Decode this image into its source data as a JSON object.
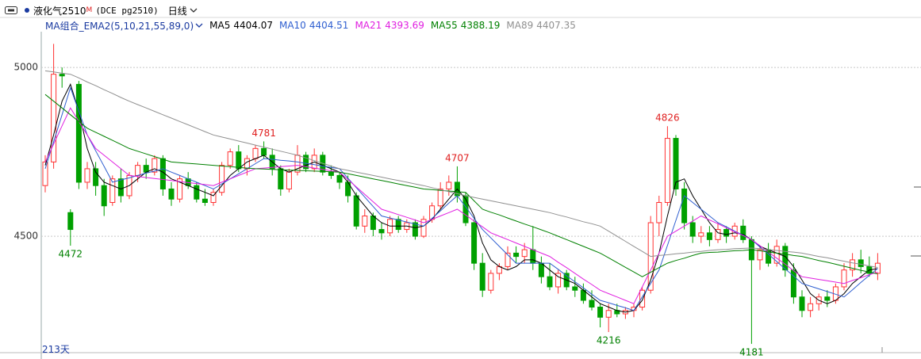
{
  "header": {
    "symbol": "液化气2510",
    "flag": "M",
    "code": "(DCE pg2510)",
    "period": "日线"
  },
  "indicator": "MA组合_EMA2(5,10,21,55,89,0)",
  "footer": "213天",
  "chart_data": {
    "type": "candlestick",
    "up_color": "#ff3232",
    "down_color": "#00a000",
    "ylim": [
      4155,
      5106
    ],
    "yticks": [
      4500,
      5000
    ],
    "grid": true,
    "open": [
      4650,
      4720,
      4980,
      4570,
      4950,
      4660,
      4700,
      4650,
      4600,
      4670,
      4620,
      4680,
      4710,
      4690,
      4730,
      4640,
      4610,
      4670,
      4650,
      4610,
      4600,
      4630,
      4710,
      4750,
      4700,
      4730,
      4760,
      4740,
      4700,
      4640,
      4690,
      4740,
      4700,
      4740,
      4690,
      4680,
      4660,
      4620,
      4530,
      4560,
      4520,
      4510,
      4550,
      4520,
      4540,
      4500,
      4550,
      4590,
      4640,
      4660,
      4620,
      4540,
      4420,
      4340,
      4390,
      4410,
      4450,
      4440,
      4460,
      4420,
      4380,
      4350,
      4390,
      4350,
      4340,
      4310,
      4290,
      4260,
      4280,
      4270,
      4280,
      4290,
      4340,
      4540,
      4600,
      4790,
      4640,
      4540,
      4500,
      4510,
      4490,
      4520,
      4500,
      4530,
      4490,
      4430,
      4460,
      4420,
      4470,
      4400,
      4320,
      4280,
      4300,
      4320,
      4310,
      4350,
      4400,
      4430,
      4410,
      4390
    ],
    "high": [
      4740,
      5070,
      5000,
      4580,
      4960,
      4720,
      4720,
      4670,
      4680,
      4700,
      4690,
      4720,
      4730,
      4740,
      4740,
      4660,
      4680,
      4690,
      4660,
      4640,
      4640,
      4720,
      4760,
      4770,
      4740,
      4770,
      4781,
      4760,
      4710,
      4700,
      4770,
      4750,
      4760,
      4750,
      4710,
      4690,
      4680,
      4630,
      4580,
      4570,
      4540,
      4560,
      4560,
      4550,
      4550,
      4560,
      4600,
      4660,
      4680,
      4707,
      4630,
      4550,
      4450,
      4400,
      4420,
      4470,
      4470,
      4480,
      4530,
      4440,
      4420,
      4400,
      4400,
      4380,
      4360,
      4340,
      4300,
      4300,
      4300,
      4290,
      4300,
      4350,
      4560,
      4620,
      4826,
      4800,
      4660,
      4560,
      4530,
      4530,
      4540,
      4530,
      4540,
      4550,
      4500,
      4470,
      4480,
      4490,
      4480,
      4420,
      4340,
      4320,
      4330,
      4340,
      4360,
      4420,
      4450,
      4460,
      4440,
      4450
    ],
    "low": [
      4630,
      4700,
      4940,
      4472,
      4640,
      4640,
      4620,
      4560,
      4590,
      4600,
      4610,
      4660,
      4670,
      4680,
      4620,
      4590,
      4600,
      4640,
      4600,
      4590,
      4590,
      4620,
      4700,
      4690,
      4680,
      4720,
      4730,
      4680,
      4620,
      4630,
      4680,
      4690,
      4690,
      4680,
      4670,
      4640,
      4600,
      4520,
      4510,
      4500,
      4490,
      4500,
      4510,
      4510,
      4490,
      4495,
      4540,
      4580,
      4620,
      4600,
      4530,
      4400,
      4320,
      4330,
      4370,
      4400,
      4420,
      4420,
      4400,
      4360,
      4340,
      4330,
      4340,
      4320,
      4300,
      4280,
      4230,
      4216,
      4260,
      4255,
      4260,
      4280,
      4330,
      4500,
      4590,
      4620,
      4520,
      4480,
      4480,
      4470,
      4480,
      4480,
      4490,
      4480,
      4181,
      4400,
      4410,
      4410,
      4380,
      4300,
      4260,
      4260,
      4280,
      4290,
      4300,
      4340,
      4380,
      4390,
      4380,
      4370
    ],
    "close": [
      4720,
      4980,
      4975,
      4520,
      4660,
      4700,
      4650,
      4590,
      4670,
      4620,
      4680,
      4710,
      4690,
      4730,
      4640,
      4610,
      4670,
      4650,
      4610,
      4600,
      4630,
      4710,
      4750,
      4700,
      4730,
      4760,
      4740,
      4700,
      4640,
      4690,
      4740,
      4700,
      4740,
      4690,
      4680,
      4660,
      4620,
      4530,
      4560,
      4520,
      4510,
      4550,
      4520,
      4540,
      4500,
      4550,
      4590,
      4640,
      4660,
      4620,
      4540,
      4420,
      4340,
      4390,
      4410,
      4450,
      4440,
      4460,
      4420,
      4380,
      4350,
      4390,
      4350,
      4340,
      4310,
      4290,
      4260,
      4280,
      4270,
      4280,
      4290,
      4340,
      4540,
      4600,
      4790,
      4640,
      4540,
      4500,
      4510,
      4490,
      4520,
      4500,
      4530,
      4490,
      4430,
      4460,
      4420,
      4470,
      4400,
      4320,
      4280,
      4300,
      4320,
      4310,
      4350,
      4400,
      4430,
      4410,
      4390,
      4420
    ],
    "extreme_labels": [
      4472,
      4781,
      4707,
      4826,
      4216,
      4181
    ],
    "series": [
      {
        "name": "MA5",
        "color": "#000000",
        "values": [
          4710,
          4800,
          4900,
          4950,
          4870,
          4760,
          4690,
          4660,
          4650,
          4640,
          4650,
          4670,
          4690,
          4700,
          4690,
          4670,
          4660,
          4650,
          4640,
          4630,
          4620,
          4650,
          4680,
          4700,
          4720,
          4730,
          4740,
          4720,
          4700,
          4690,
          4700,
          4710,
          4720,
          4710,
          4700,
          4690,
          4660,
          4620,
          4590,
          4560,
          4540,
          4530,
          4530,
          4530,
          4525,
          4530,
          4550,
          4580,
          4610,
          4640,
          4610,
          4560,
          4480,
          4430,
          4410,
          4400,
          4410,
          4430,
          4430,
          4420,
          4400,
          4380,
          4370,
          4360,
          4340,
          4320,
          4300,
          4290,
          4280,
          4275,
          4280,
          4310,
          4370,
          4450,
          4560,
          4660,
          4670,
          4620,
          4580,
          4540,
          4510,
          4505,
          4510,
          4505,
          4490,
          4470,
          4460,
          4450,
          4440,
          4410,
          4370,
          4330,
          4310,
          4300,
          4310,
          4330,
          4360,
          4380,
          4400,
          4404.07
        ]
      },
      {
        "name": "MA10",
        "color": "#2f5fd0",
        "values": [
          4700,
          4780,
          4860,
          4940,
          4870,
          4800,
          4753,
          4707,
          4660,
          4667,
          4673,
          4680,
          4687,
          4693,
          4700,
          4690,
          4680,
          4670,
          4660,
          4650,
          4640,
          4655,
          4670,
          4685,
          4700,
          4715,
          4730,
          4728,
          4725,
          4723,
          4720,
          4716,
          4712,
          4708,
          4704,
          4700,
          4672,
          4644,
          4616,
          4588,
          4560,
          4554,
          4548,
          4542,
          4536,
          4530,
          4553,
          4575,
          4598,
          4620,
          4587,
          4553,
          4520,
          4495,
          4470,
          4445,
          4420,
          4420,
          4420,
          4420,
          4420,
          4402,
          4383,
          4365,
          4347,
          4328,
          4310,
          4303,
          4295,
          4288,
          4280,
          4320,
          4360,
          4400,
          4473,
          4547,
          4620,
          4600,
          4580,
          4560,
          4540,
          4528,
          4515,
          4503,
          4490,
          4468,
          4447,
          4425,
          4403,
          4382,
          4360,
          4352,
          4344,
          4336,
          4328,
          4320,
          4341,
          4363,
          4384,
          4404.51
        ]
      },
      {
        "name": "MA21",
        "color": "#e020e0",
        "values": [
          4720,
          4773,
          4827,
          4880,
          4840,
          4800,
          4760,
          4740,
          4720,
          4700,
          4680,
          4677,
          4674,
          4671,
          4668,
          4665,
          4662,
          4659,
          4656,
          4653,
          4650,
          4660,
          4670,
          4680,
          4690,
          4700,
          4702,
          4704,
          4706,
          4708,
          4710,
          4706,
          4702,
          4698,
          4694,
          4690,
          4668,
          4646,
          4624,
          4602,
          4580,
          4572,
          4564,
          4556,
          4548,
          4540,
          4550,
          4560,
          4570,
          4580,
          4563,
          4545,
          4528,
          4510,
          4500,
          4490,
          4480,
          4470,
          4460,
          4450,
          4440,
          4423,
          4407,
          4390,
          4373,
          4357,
          4340,
          4330,
          4320,
          4310,
          4300,
          4350,
          4400,
          4450,
          4500,
          4515,
          4530,
          4545,
          4560,
          4548,
          4537,
          4525,
          4513,
          4502,
          4490,
          4472,
          4453,
          4435,
          4417,
          4398,
          4380,
          4376,
          4372,
          4368,
          4364,
          4360,
          4369,
          4377,
          4386,
          4393.69
        ]
      },
      {
        "name": "MA55",
        "color": "#008000",
        "values": [
          4920,
          4900,
          4880,
          4860,
          4840,
          4820,
          4808,
          4796,
          4784,
          4772,
          4760,
          4752,
          4744,
          4736,
          4728,
          4720,
          4718,
          4716,
          4714,
          4712,
          4710,
          4708,
          4706,
          4704,
          4702,
          4700,
          4699,
          4698,
          4697,
          4696,
          4695,
          4694,
          4693,
          4692,
          4691,
          4690,
          4685,
          4680,
          4675,
          4670,
          4665,
          4660,
          4655,
          4650,
          4645,
          4640,
          4638,
          4636,
          4634,
          4632,
          4630,
          4605,
          4580,
          4571,
          4563,
          4554,
          4545,
          4536,
          4528,
          4519,
          4510,
          4500,
          4490,
          4480,
          4470,
          4460,
          4450,
          4436,
          4422,
          4408,
          4394,
          4380,
          4393,
          4407,
          4420,
          4428,
          4435,
          4443,
          4450,
          4452,
          4453,
          4455,
          4457,
          4458,
          4460,
          4457,
          4453,
          4450,
          4447,
          4443,
          4440,
          4434,
          4428,
          4423,
          4417,
          4411,
          4405,
          4399,
          4394,
          4388.19
        ]
      },
      {
        "name": "MA89",
        "color": "#909090",
        "values": [
          4990,
          4987,
          4983,
          4980,
          4969,
          4957,
          4946,
          4934,
          4923,
          4911,
          4900,
          4890,
          4880,
          4870,
          4860,
          4850,
          4840,
          4830,
          4820,
          4810,
          4800,
          4794,
          4788,
          4782,
          4776,
          4770,
          4764,
          4758,
          4752,
          4746,
          4740,
          4732,
          4724,
          4716,
          4708,
          4700,
          4695,
          4690,
          4685,
          4680,
          4675,
          4670,
          4665,
          4660,
          4655,
          4650,
          4644,
          4638,
          4632,
          4626,
          4620,
          4615,
          4610,
          4605,
          4600,
          4595,
          4590,
          4585,
          4580,
          4575,
          4570,
          4563,
          4557,
          4550,
          4543,
          4537,
          4530,
          4515,
          4500,
          4485,
          4470,
          4455,
          4440,
          4443,
          4445,
          4448,
          4450,
          4453,
          4455,
          4458,
          4460,
          4461,
          4463,
          4464,
          4465,
          4463,
          4460,
          4458,
          4455,
          4453,
          4450,
          4445,
          4440,
          4436,
          4431,
          4426,
          4421,
          4417,
          4412,
          4407.35
        ]
      }
    ]
  }
}
